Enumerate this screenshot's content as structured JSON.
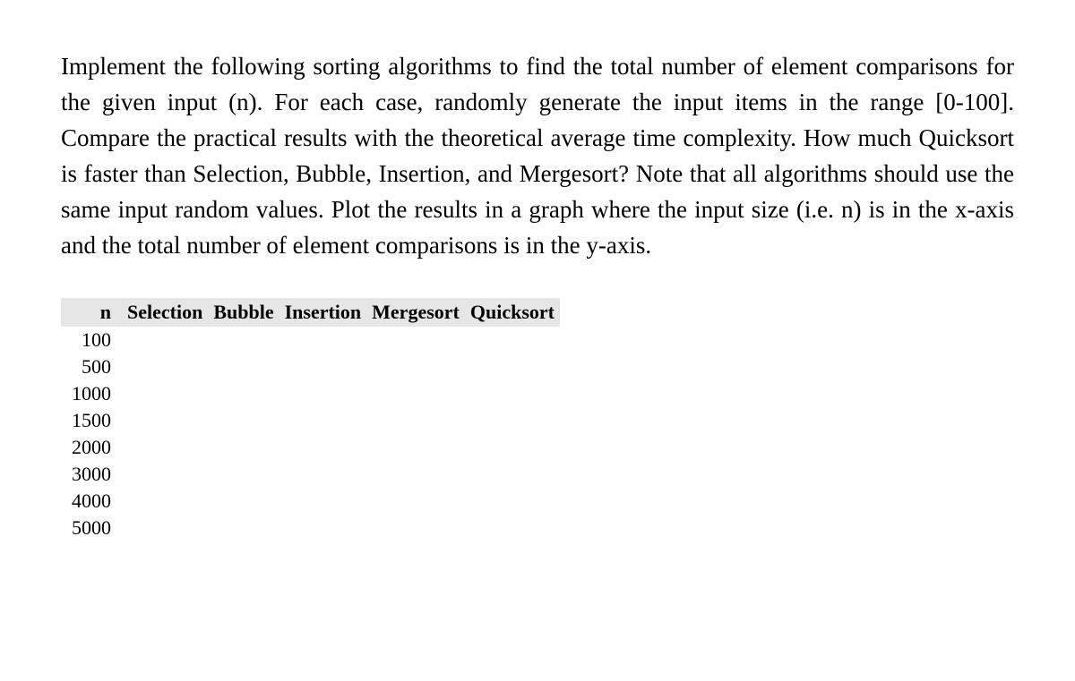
{
  "paragraph": "Implement the following sorting algorithms to find the total number of element comparisons for the given input (n). For each case, randomly generate the input items in the range [0-100]. Compare the practical results with the theoretical average time complexity. How much Quicksort is faster than Selection, Bubble, Insertion, and Mergesort? Note that all algorithms should use the same input random values. Plot the results in a graph where the input size (i.e. n) is in the x-axis and the total number of element comparisons is in the y-axis.",
  "table": {
    "columns": [
      "n",
      "Selection",
      "Bubble",
      "Insertion",
      "Mergesort",
      "Quicksort"
    ],
    "rows": [
      [
        "100",
        "",
        "",
        "",
        "",
        ""
      ],
      [
        "500",
        "",
        "",
        "",
        "",
        ""
      ],
      [
        "1000",
        "",
        "",
        "",
        "",
        ""
      ],
      [
        "1500",
        "",
        "",
        "",
        "",
        ""
      ],
      [
        "2000",
        "",
        "",
        "",
        "",
        ""
      ],
      [
        "3000",
        "",
        "",
        "",
        "",
        ""
      ],
      [
        "4000",
        "",
        "",
        "",
        "",
        ""
      ],
      [
        "5000",
        "",
        "",
        "",
        "",
        ""
      ]
    ],
    "header_bg_color": "#e6e6e6",
    "text_color": "#000000",
    "font_size_header": 22,
    "font_size_cell": 22
  },
  "styling": {
    "background_color": "#ffffff",
    "paragraph_font_size": 27,
    "paragraph_color": "#000000",
    "paragraph_line_height": 1.48,
    "font_family": "Georgia, Times New Roman, serif"
  }
}
